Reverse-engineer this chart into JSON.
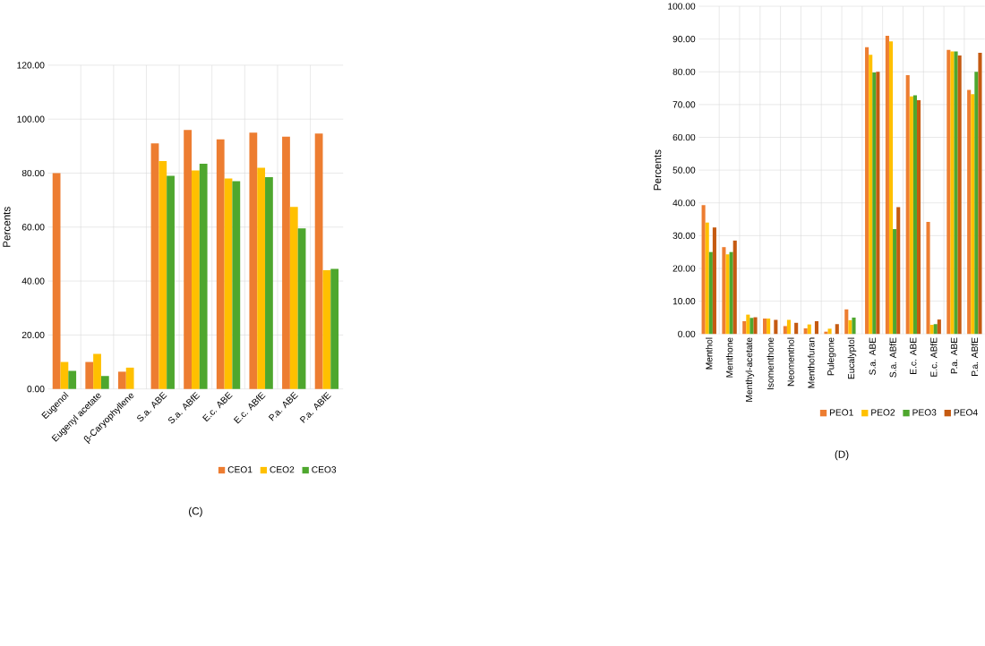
{
  "chart_data": [
    {
      "type": "bar",
      "title": "(C)",
      "ylabel": "Percents",
      "categories": [
        "Eugenol",
        "Eugenyl acetate",
        "β-Caryophyllene",
        "S.a. ABE",
        "S.a. ABfE",
        "E.c. ABE",
        "E.c. ABfE",
        "P.a. ABE",
        "P.a. ABfE"
      ],
      "series": [
        {
          "name": "CEO1",
          "color": "#ed7d31",
          "values": [
            80,
            10,
            6.4,
            91,
            96,
            92.5,
            95,
            93.5,
            94.7
          ]
        },
        {
          "name": "CEO2",
          "color": "#ffc000",
          "values": [
            10,
            13,
            7.9,
            84.5,
            81,
            78,
            82,
            67.5,
            44
          ]
        },
        {
          "name": "CEO3",
          "color": "#4ea72e",
          "values": [
            6.7,
            4.8,
            null,
            79,
            83.5,
            77,
            78.5,
            59.5,
            44.5
          ]
        }
      ],
      "ylim": [
        0,
        120
      ],
      "yticks": [
        {
          "value": 0,
          "label": "0.00"
        },
        {
          "value": 20,
          "label": "20.00"
        },
        {
          "value": 40,
          "label": "40.00"
        },
        {
          "value": 60,
          "label": "60.00"
        },
        {
          "value": 80,
          "label": "80.00"
        },
        {
          "value": 100,
          "label": "100.00"
        },
        {
          "value": 120,
          "label": "120.00"
        }
      ],
      "grid": true,
      "legend": "bottom right"
    },
    {
      "type": "bar",
      "title": "(D)",
      "ylabel": "Percents",
      "categories": [
        "Menthol",
        "Menthone",
        "Menthyl-acetate",
        "Isomenthone",
        "Neomenthol",
        "Menthofuran",
        "Pulegone",
        "Eucalyptol",
        "S.a. ABE",
        "S.a. ABfE",
        "E.c. ABE",
        "E.c. ABfE",
        "P.a. ABE",
        "P.a. ABfE"
      ],
      "series": [
        {
          "name": "PEO1",
          "color": "#ed7d31",
          "values": [
            39.3,
            26.5,
            3.9,
            4.7,
            2.4,
            1.7,
            0.7,
            7.5,
            87.5,
            91,
            79,
            34.2,
            86.7,
            74.5
          ]
        },
        {
          "name": "PEO2",
          "color": "#ffc000",
          "values": [
            34,
            24.3,
            5.9,
            4.7,
            4.3,
            2.9,
            1.6,
            4.2,
            85.2,
            89.3,
            72.5,
            2.8,
            86.2,
            73.2
          ]
        },
        {
          "name": "PEO3",
          "color": "#4ea72e",
          "values": [
            25,
            25,
            4.9,
            null,
            null,
            null,
            null,
            5,
            79.8,
            32,
            72.8,
            3,
            86.2,
            80
          ]
        },
        {
          "name": "PEO4",
          "color": "#c55a11",
          "values": [
            32.5,
            28.5,
            5.1,
            4.3,
            3.4,
            3.9,
            3,
            null,
            80,
            38.7,
            71.3,
            4.4,
            85,
            85.8
          ]
        }
      ],
      "ylim": [
        0,
        100
      ],
      "yticks": [
        {
          "value": 0,
          "label": "0.00"
        },
        {
          "value": 10,
          "label": "10.00"
        },
        {
          "value": 20,
          "label": "20.00"
        },
        {
          "value": 30,
          "label": "30.00"
        },
        {
          "value": 40,
          "label": "40.00"
        },
        {
          "value": 50,
          "label": "50.00"
        },
        {
          "value": 60,
          "label": "60.00"
        },
        {
          "value": 70,
          "label": "70.00"
        },
        {
          "value": 80,
          "label": "80.00"
        },
        {
          "value": 90,
          "label": "90.00"
        },
        {
          "value": 100,
          "label": "100.00"
        }
      ],
      "grid": true,
      "legend": "bottom right"
    }
  ]
}
